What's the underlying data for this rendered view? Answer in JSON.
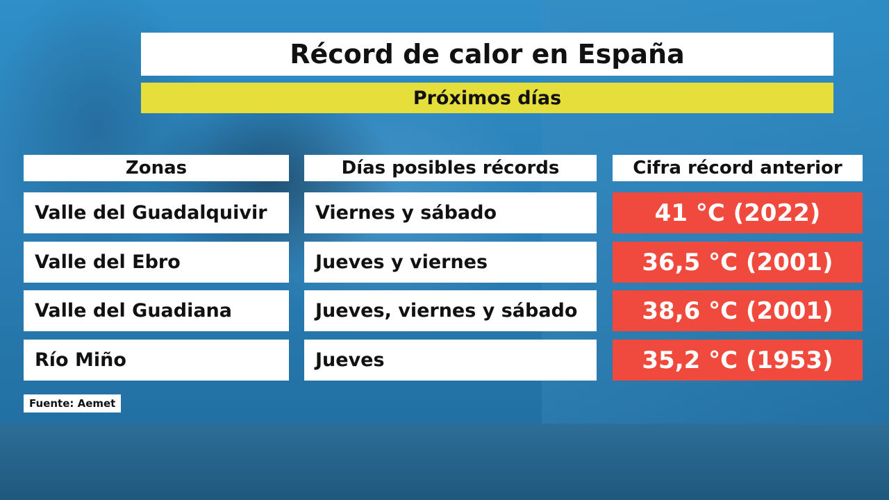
{
  "title": "Récord de calor en España",
  "subtitle": "Próximos días",
  "headers": {
    "zona": "Zonas",
    "dias": "Días posibles récords",
    "cifra": "Cifra récord anterior"
  },
  "rows": [
    {
      "zona": "Valle del Guadalquivir",
      "dias": "Viernes y sábado",
      "record": "41 °C (2022)"
    },
    {
      "zona": "Valle del Ebro",
      "dias": "Jueves y viernes",
      "record": "36,5 °C (2001)"
    },
    {
      "zona": "Valle del Guadiana",
      "dias": "Jueves, viernes y sábado",
      "record": "38,6 °C (2001)"
    },
    {
      "zona": "Río Miño",
      "dias": "Jueves",
      "record": "35,2 °C (1953)"
    }
  ],
  "source": "Fuente: Aemet",
  "colors": {
    "title_bg": "#ffffff",
    "subtitle_bg": "#e6de3a",
    "record_bg": "#f04a3e",
    "background": "#2a7fb4"
  }
}
